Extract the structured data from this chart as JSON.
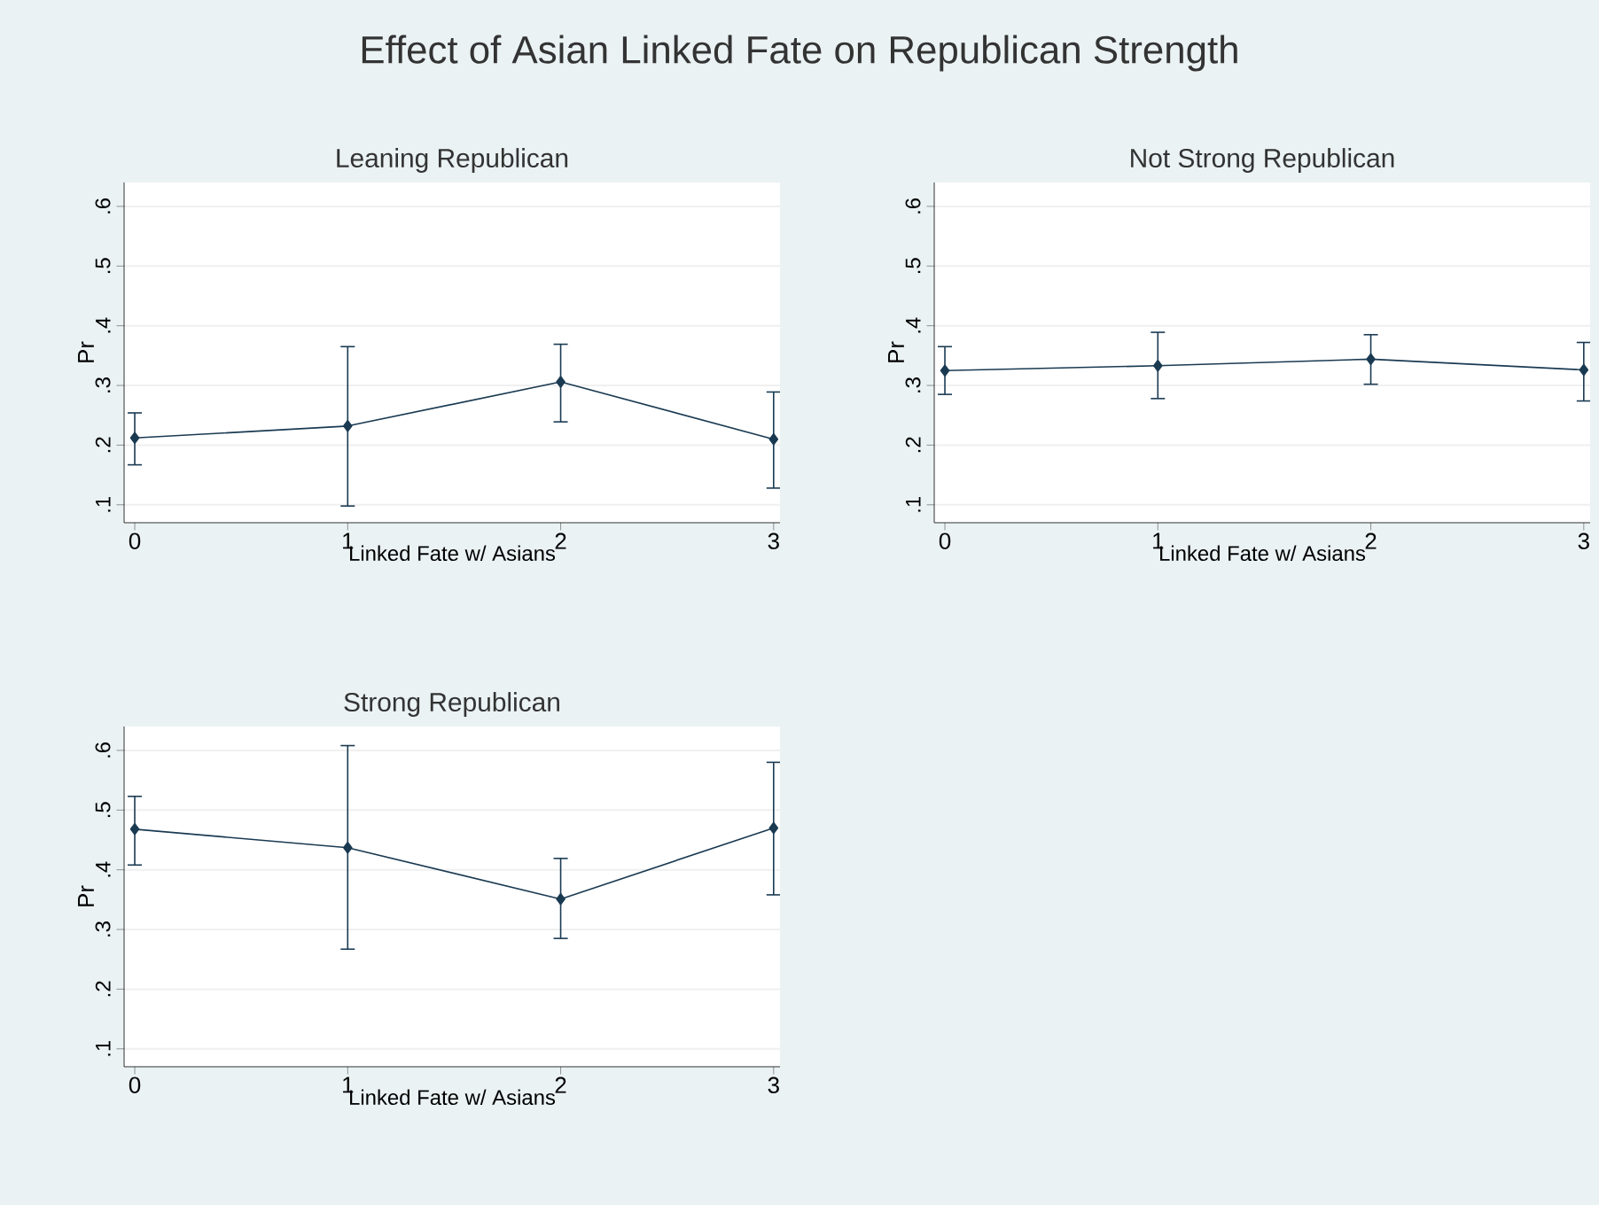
{
  "chart_data": [
    {
      "type": "line",
      "title": "Leaning Republican",
      "xlabel": "Linked Fate w/ Asians",
      "ylabel": "Pr",
      "annotations": [
        "Effect of Asian Linked Fate on Republican Strength"
      ],
      "x": [
        0,
        1,
        2,
        3
      ],
      "xlim": [
        -0.05,
        3.03
      ],
      "xticks": [
        0,
        1,
        2,
        3
      ],
      "ylim": [
        0.07,
        0.64
      ],
      "yticks": [
        {
          "value": 0.1,
          "label": ".1"
        },
        {
          "value": 0.2,
          "label": ".2"
        },
        {
          "value": 0.3,
          "label": ".3"
        },
        {
          "value": 0.4,
          "label": ".4"
        },
        {
          "value": 0.5,
          "label": ".5"
        },
        {
          "value": 0.6,
          "label": ".6"
        }
      ],
      "grid": "y",
      "marker": "diamond",
      "line_style": "solid",
      "series": [
        {
          "color": "#1a3a52",
          "values": [
            0.212,
            0.232,
            0.306,
            0.21
          ],
          "errors": [
            [
              0.167,
              0.254
            ],
            [
              0.098,
              0.365
            ],
            [
              0.239,
              0.369
            ],
            [
              0.128,
              0.289
            ]
          ]
        }
      ]
    },
    {
      "type": "line",
      "title": "Not Strong Republican",
      "xlabel": "Linked Fate w/ Asians",
      "ylabel": "Pr",
      "x": [
        0,
        1,
        2,
        3
      ],
      "xlim": [
        -0.05,
        3.03
      ],
      "xticks": [
        0,
        1,
        2,
        3
      ],
      "ylim": [
        0.07,
        0.64
      ],
      "yticks": [
        {
          "value": 0.1,
          "label": ".1"
        },
        {
          "value": 0.2,
          "label": ".2"
        },
        {
          "value": 0.3,
          "label": ".3"
        },
        {
          "value": 0.4,
          "label": ".4"
        },
        {
          "value": 0.5,
          "label": ".5"
        },
        {
          "value": 0.6,
          "label": ".6"
        }
      ],
      "grid": "y",
      "marker": "diamond",
      "line_style": "solid",
      "series": [
        {
          "color": "#1a3a52",
          "values": [
            0.325,
            0.333,
            0.344,
            0.326
          ],
          "errors": [
            [
              0.285,
              0.365
            ],
            [
              0.278,
              0.389
            ],
            [
              0.302,
              0.385
            ],
            [
              0.274,
              0.372
            ]
          ]
        }
      ]
    },
    {
      "type": "line",
      "title": "Strong Republican",
      "xlabel": "Linked Fate w/ Asians",
      "ylabel": "Pr",
      "x": [
        0,
        1,
        2,
        3
      ],
      "xlim": [
        -0.05,
        3.03
      ],
      "xticks": [
        0,
        1,
        2,
        3
      ],
      "ylim": [
        0.07,
        0.64
      ],
      "yticks": [
        {
          "value": 0.1,
          "label": ".1"
        },
        {
          "value": 0.2,
          "label": ".2"
        },
        {
          "value": 0.3,
          "label": ".3"
        },
        {
          "value": 0.4,
          "label": ".4"
        },
        {
          "value": 0.5,
          "label": ".5"
        },
        {
          "value": 0.6,
          "label": ".6"
        }
      ],
      "grid": "y",
      "marker": "diamond",
      "line_style": "solid",
      "series": [
        {
          "color": "#1a3a52",
          "values": [
            0.468,
            0.437,
            0.351,
            0.47
          ],
          "errors": [
            [
              0.408,
              0.523
            ],
            [
              0.267,
              0.608
            ],
            [
              0.285,
              0.419
            ],
            [
              0.358,
              0.58
            ]
          ]
        }
      ]
    }
  ]
}
